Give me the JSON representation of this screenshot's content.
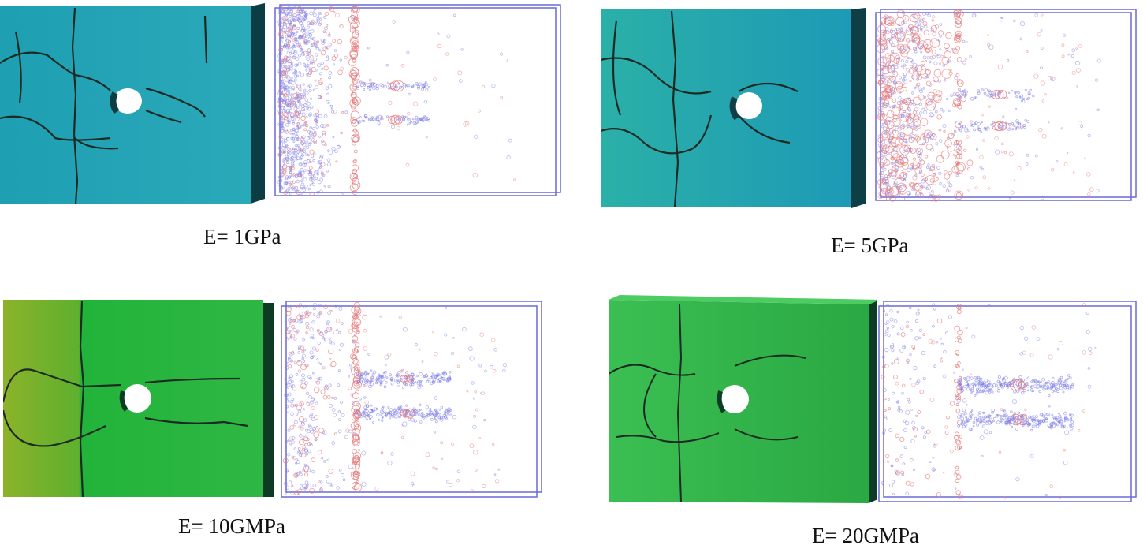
{
  "figure": {
    "panels": [
      {
        "caption": "E= 1GPa",
        "slab_color_light": "#26a7b8",
        "slab_color_dark": "#1a7f8f",
        "side_color": "#0d3d44"
      },
      {
        "caption": "E= 5GPa",
        "slab_color_light": "#2ab0b4",
        "slab_color_dark": "#1b8a9a",
        "side_color": "#0f3f46"
      },
      {
        "caption": "E= 10GMPa",
        "slab_color_light": "#79b42a",
        "slab_color_dark": "#23b53a",
        "side_color": "#0d3b24"
      },
      {
        "caption": "E= 20GMPa",
        "slab_color_light": "#3cc14e",
        "slab_color_dark": "#24a83d",
        "side_color": "#0e3d27"
      }
    ],
    "colors": {
      "frame": "#6a6ad8",
      "blue_events": "#7a7ae8",
      "red_events": "#e57878",
      "crack": "#1c2a24",
      "hole": "#ffffff"
    }
  }
}
